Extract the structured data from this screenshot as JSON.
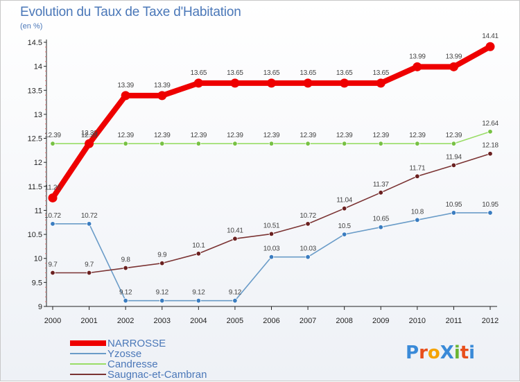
{
  "header": {
    "title": "Evolution du Taux de Taxe d'Habitation",
    "unit": "(en %)"
  },
  "logo": {
    "text": "ProXiti"
  },
  "colors": {
    "axis": "#222222",
    "grid_marks": "#e07070"
  },
  "chart_data": {
    "type": "line",
    "title": "Evolution du Taux de Taxe d'Habitation",
    "subtitle": "(en %)",
    "xlabel": "",
    "ylabel": "",
    "x": [
      "2000",
      "2001",
      "2002",
      "2003",
      "2004",
      "2005",
      "2006",
      "2007",
      "2008",
      "2009",
      "2010",
      "2011",
      "2012"
    ],
    "y_ticks": [
      "9",
      "9.5",
      "10",
      "10.5",
      "11",
      "11.5",
      "12",
      "12.5",
      "13",
      "13.5",
      "14",
      "14.5"
    ],
    "ylim": [
      9,
      14.5
    ],
    "grid": false,
    "legend_position": "bottom-left",
    "series": [
      {
        "name": "NARROSSE",
        "color": "#ee0000",
        "point_color": "#ee0000",
        "emphasis": true,
        "values": [
          11.26,
          12.39,
          13.39,
          13.39,
          13.65,
          13.65,
          13.65,
          13.65,
          13.65,
          13.65,
          13.99,
          13.99,
          14.41
        ],
        "labels": [
          "11.26",
          "12.39",
          "13.39",
          "13.39",
          "13.65",
          "13.65",
          "13.65",
          "13.65",
          "13.65",
          "13.65",
          "13.99",
          "13.99",
          "14.41"
        ]
      },
      {
        "name": "Yzosse",
        "color": "#6a9cc8",
        "point_color": "#3a7cc0",
        "emphasis": false,
        "values": [
          10.72,
          10.72,
          9.12,
          9.12,
          9.12,
          9.12,
          10.03,
          10.03,
          10.5,
          10.65,
          10.8,
          10.95,
          10.95
        ],
        "labels": [
          "10.72",
          "10.72",
          "9.12",
          "9.12",
          "9.12",
          "9.12",
          "10.03",
          "10.03",
          "10.5",
          "10.65",
          "10.8",
          "10.95",
          "10.95"
        ]
      },
      {
        "name": "Candresse",
        "color": "#99dd66",
        "point_color": "#77c144",
        "emphasis": false,
        "values": [
          12.39,
          12.39,
          12.39,
          12.39,
          12.39,
          12.39,
          12.39,
          12.39,
          12.39,
          12.39,
          12.39,
          12.39,
          12.64
        ],
        "labels": [
          "12.39",
          "12.39",
          "12.39",
          "12.39",
          "12.39",
          "12.39",
          "12.39",
          "12.39",
          "12.39",
          "12.39",
          "12.39",
          "12.39",
          "12.64"
        ]
      },
      {
        "name": "Saugnac-et-Cambran",
        "color": "#7a3232",
        "point_color": "#6a2020",
        "emphasis": false,
        "values": [
          9.7,
          9.7,
          9.8,
          9.9,
          10.1,
          10.41,
          10.51,
          10.72,
          11.04,
          11.37,
          11.71,
          11.94,
          12.18
        ],
        "labels": [
          "9.7",
          "9.7",
          "9.8",
          "9.9",
          "10.1",
          "10.41",
          "10.51",
          "10.72",
          "11.04",
          "11.37",
          "11.71",
          "11.94",
          "12.18"
        ]
      }
    ]
  }
}
